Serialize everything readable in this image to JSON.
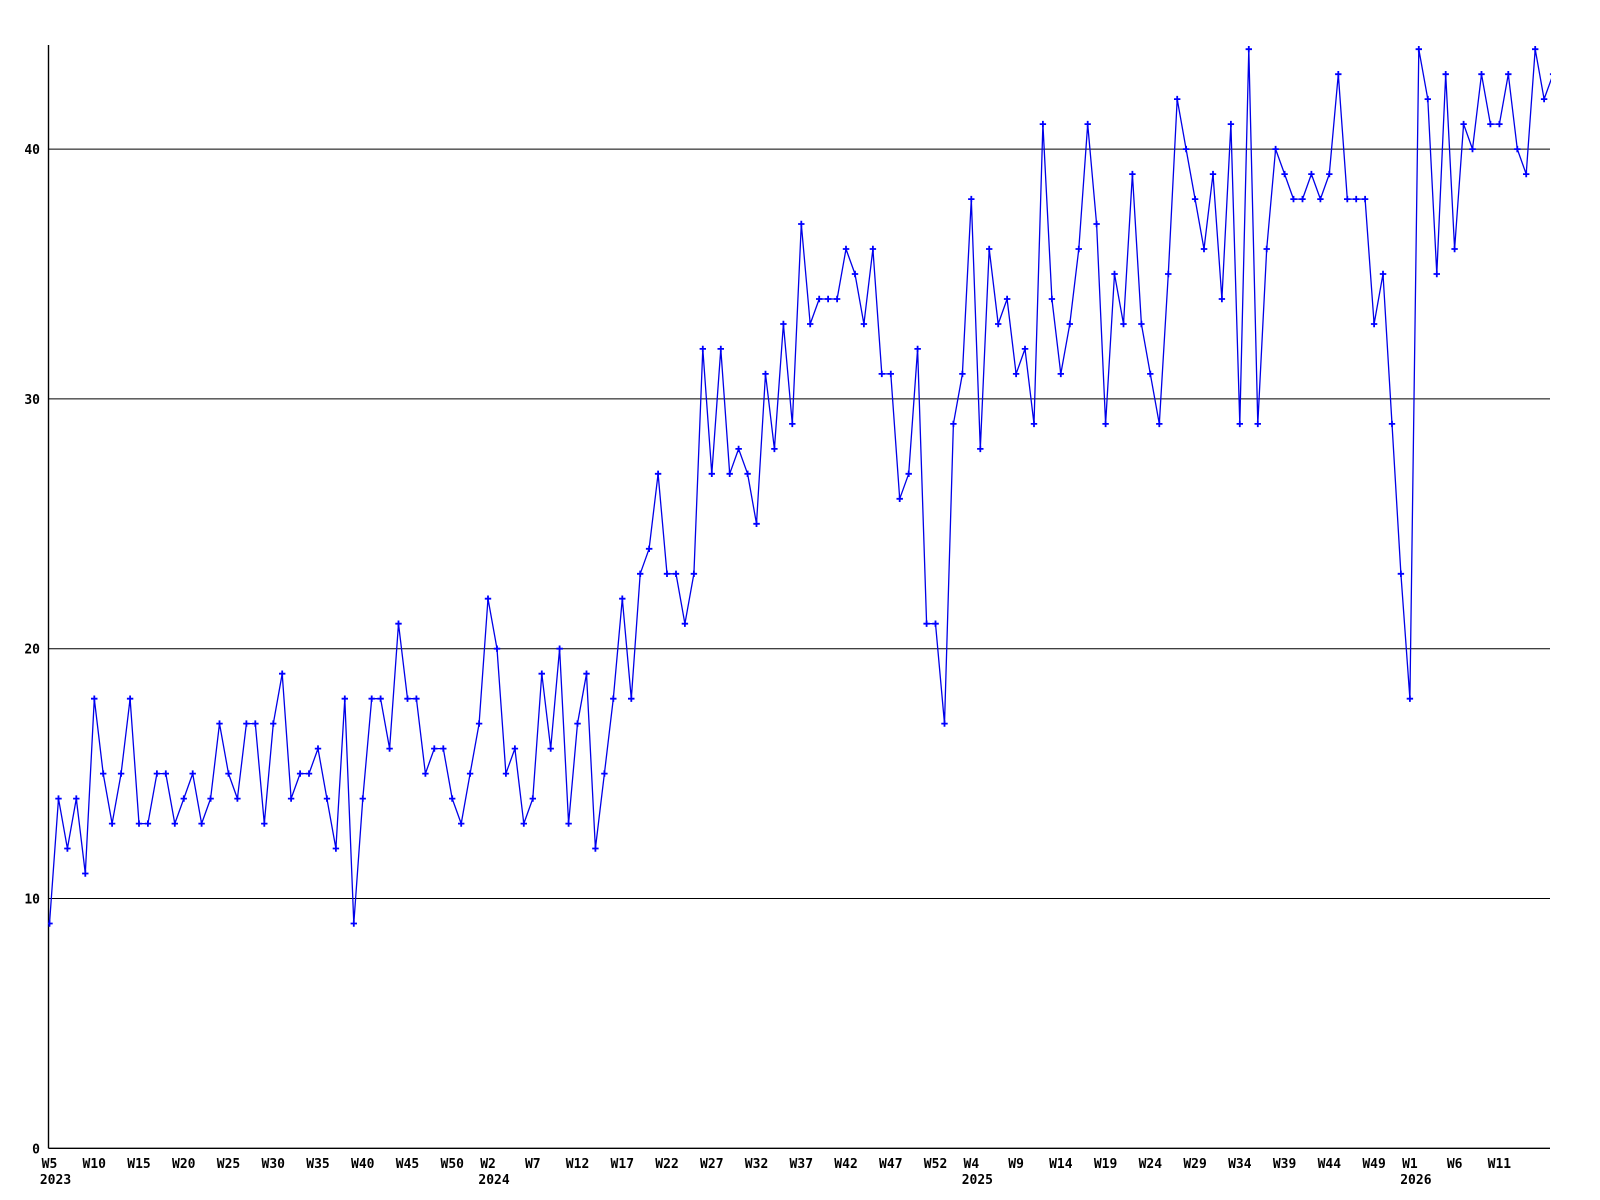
{
  "chart_data": {
    "type": "line",
    "title": "",
    "xlabel": "",
    "ylabel": "",
    "legend": "none",
    "grid": "horizontal",
    "background_color": "#ffffff",
    "grid_color": "#000000",
    "line_color": "#0000e8",
    "marker_color": "#0000ff",
    "marker_shape": "plus",
    "ylim": [
      0,
      44.5
    ],
    "yticks": [
      0,
      10,
      20,
      30,
      40
    ],
    "x_tick_labels": [
      {
        "label": "W5",
        "index": 0
      },
      {
        "label": "W10",
        "index": 5
      },
      {
        "label": "W15",
        "index": 10
      },
      {
        "label": "W20",
        "index": 15
      },
      {
        "label": "W25",
        "index": 20
      },
      {
        "label": "W30",
        "index": 25
      },
      {
        "label": "W35",
        "index": 30
      },
      {
        "label": "W40",
        "index": 35
      },
      {
        "label": "W45",
        "index": 40
      },
      {
        "label": "W50",
        "index": 45
      },
      {
        "label": "W2",
        "index": 49
      },
      {
        "label": "W7",
        "index": 54
      },
      {
        "label": "W12",
        "index": 59
      },
      {
        "label": "W17",
        "index": 64
      },
      {
        "label": "W22",
        "index": 69
      },
      {
        "label": "W27",
        "index": 74
      },
      {
        "label": "W32",
        "index": 79
      },
      {
        "label": "W37",
        "index": 84
      },
      {
        "label": "W42",
        "index": 89
      },
      {
        "label": "W47",
        "index": 94
      },
      {
        "label": "W52",
        "index": 99
      },
      {
        "label": "W4",
        "index": 103
      },
      {
        "label": "W9",
        "index": 108
      },
      {
        "label": "W14",
        "index": 113
      },
      {
        "label": "W19",
        "index": 118
      },
      {
        "label": "W24",
        "index": 123
      },
      {
        "label": "W29",
        "index": 128
      },
      {
        "label": "W34",
        "index": 133
      },
      {
        "label": "W39",
        "index": 138
      },
      {
        "label": "W44",
        "index": 143
      },
      {
        "label": "W49",
        "index": 148
      },
      {
        "label": "W1",
        "index": 152
      },
      {
        "label": "W6",
        "index": 157
      },
      {
        "label": "W11",
        "index": 162
      }
    ],
    "year_labels": [
      {
        "label": "2023",
        "index": 0
      },
      {
        "label": "2024",
        "index": 49
      },
      {
        "label": "2025",
        "index": 103
      },
      {
        "label": "2026",
        "index": 152
      }
    ],
    "values": [
      9,
      14,
      12,
      14,
      11,
      18,
      15,
      13,
      15,
      18,
      13,
      13,
      15,
      15,
      13,
      14,
      15,
      13,
      14,
      17,
      15,
      14,
      17,
      17,
      13,
      17,
      19,
      14,
      15,
      15,
      16,
      14,
      12,
      18,
      9,
      14,
      18,
      18,
      16,
      21,
      18,
      18,
      15,
      16,
      16,
      14,
      13,
      15,
      17,
      22,
      20,
      15,
      16,
      13,
      14,
      19,
      16,
      20,
      13,
      17,
      19,
      12,
      15,
      18,
      22,
      18,
      23,
      24,
      27,
      23,
      23,
      21,
      23,
      32,
      27,
      32,
      27,
      28,
      27,
      25,
      31,
      28,
      33,
      29,
      37,
      33,
      34,
      34,
      34,
      36,
      35,
      33,
      36,
      31,
      31,
      26,
      27,
      32,
      21,
      21,
      17,
      29,
      31,
      38,
      28,
      36,
      33,
      34,
      31,
      32,
      29,
      41,
      34,
      31,
      33,
      36,
      41,
      37,
      29,
      35,
      33,
      39,
      33,
      31,
      29,
      35,
      42,
      40,
      38,
      36,
      39,
      34,
      41,
      29,
      44,
      29,
      36,
      40,
      39,
      38,
      38,
      39,
      38,
      39,
      43,
      38,
      38,
      38,
      33,
      35,
      29,
      23,
      18,
      44,
      42,
      35,
      43,
      36,
      41,
      40,
      43,
      41,
      41,
      43,
      40,
      39,
      44,
      42,
      43
    ]
  }
}
